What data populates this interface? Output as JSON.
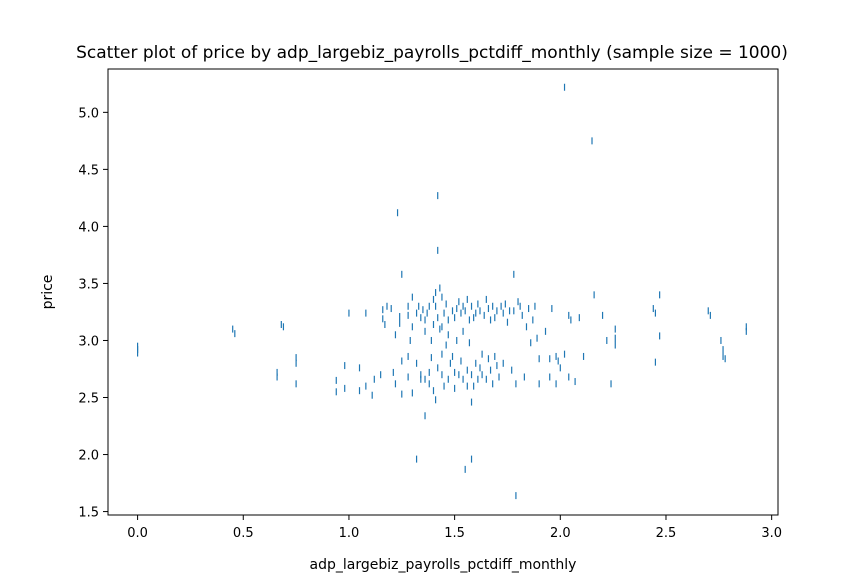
{
  "chart_data": {
    "type": "scatter",
    "title": "Scatter plot of price by adp_largebiz_payrolls_pctdiff_monthly (sample size = 1000)",
    "xlabel": "adp_largebiz_payrolls_pctdiff_monthly",
    "ylabel": "price",
    "xlim": [
      -0.14,
      3.03
    ],
    "ylim": [
      1.47,
      5.38
    ],
    "xticks": [
      0.0,
      0.5,
      1.0,
      1.5,
      2.0,
      2.5,
      3.0
    ],
    "xtick_labels": [
      "0.0",
      "0.5",
      "1.0",
      "1.5",
      "2.0",
      "2.5",
      "3.0"
    ],
    "yticks": [
      1.5,
      2.0,
      2.5,
      3.0,
      3.5,
      4.0,
      4.5,
      5.0
    ],
    "ytick_labels": [
      "1.5",
      "2.0",
      "2.5",
      "3.0",
      "3.5",
      "4.0",
      "4.5",
      "5.0"
    ],
    "grid": false,
    "marker": "|",
    "color": "#1f77b4",
    "points": [
      [
        0.0,
        2.95
      ],
      [
        0.0,
        2.92
      ],
      [
        0.0,
        2.89
      ],
      [
        0.45,
        3.1
      ],
      [
        0.46,
        3.06
      ],
      [
        0.68,
        3.14
      ],
      [
        0.69,
        3.12
      ],
      [
        0.66,
        2.72
      ],
      [
        0.66,
        2.68
      ],
      [
        0.75,
        2.85
      ],
      [
        0.75,
        2.8
      ],
      [
        0.75,
        2.62
      ],
      [
        0.94,
        2.65
      ],
      [
        0.94,
        2.55
      ],
      [
        0.98,
        2.78
      ],
      [
        0.98,
        2.58
      ],
      [
        1.0,
        3.24
      ],
      [
        1.05,
        2.76
      ],
      [
        1.05,
        2.56
      ],
      [
        1.08,
        2.6
      ],
      [
        1.08,
        3.24
      ],
      [
        1.11,
        2.52
      ],
      [
        1.12,
        2.66
      ],
      [
        1.15,
        2.7
      ],
      [
        1.16,
        3.27
      ],
      [
        1.16,
        3.19
      ],
      [
        1.17,
        3.14
      ],
      [
        1.18,
        3.3
      ],
      [
        1.2,
        3.28
      ],
      [
        1.21,
        2.72
      ],
      [
        1.22,
        3.05
      ],
      [
        1.22,
        2.62
      ],
      [
        1.23,
        4.12
      ],
      [
        1.24,
        3.15
      ],
      [
        1.24,
        3.21
      ],
      [
        1.25,
        3.58
      ],
      [
        1.25,
        2.53
      ],
      [
        1.25,
        2.82
      ],
      [
        1.28,
        3.3
      ],
      [
        1.28,
        3.22
      ],
      [
        1.28,
        2.86
      ],
      [
        1.28,
        2.68
      ],
      [
        1.29,
        3.0
      ],
      [
        1.3,
        3.38
      ],
      [
        1.3,
        3.12
      ],
      [
        1.3,
        2.54
      ],
      [
        1.32,
        3.24
      ],
      [
        1.32,
        2.8
      ],
      [
        1.32,
        1.96
      ],
      [
        1.33,
        3.3
      ],
      [
        1.34,
        3.2
      ],
      [
        1.34,
        2.7
      ],
      [
        1.34,
        2.66
      ],
      [
        1.35,
        3.27
      ],
      [
        1.36,
        3.18
      ],
      [
        1.36,
        3.08
      ],
      [
        1.36,
        2.66
      ],
      [
        1.36,
        2.34
      ],
      [
        1.37,
        3.24
      ],
      [
        1.38,
        3.3
      ],
      [
        1.38,
        2.72
      ],
      [
        1.38,
        2.62
      ],
      [
        1.39,
        3.0
      ],
      [
        1.39,
        2.85
      ],
      [
        1.4,
        3.36
      ],
      [
        1.4,
        3.14
      ],
      [
        1.4,
        2.56
      ],
      [
        1.41,
        3.42
      ],
      [
        1.41,
        3.3
      ],
      [
        1.41,
        2.48
      ],
      [
        1.42,
        4.27
      ],
      [
        1.42,
        3.79
      ],
      [
        1.42,
        3.2
      ],
      [
        1.42,
        2.76
      ],
      [
        1.43,
        3.46
      ],
      [
        1.43,
        3.1
      ],
      [
        1.44,
        3.38
      ],
      [
        1.44,
        3.12
      ],
      [
        1.44,
        2.88
      ],
      [
        1.44,
        2.7
      ],
      [
        1.45,
        3.24
      ],
      [
        1.45,
        2.6
      ],
      [
        1.46,
        3.32
      ],
      [
        1.46,
        2.96
      ],
      [
        1.47,
        3.18
      ],
      [
        1.47,
        3.05
      ],
      [
        1.47,
        2.66
      ],
      [
        1.48,
        2.8
      ],
      [
        1.49,
        3.26
      ],
      [
        1.49,
        2.86
      ],
      [
        1.5,
        3.2
      ],
      [
        1.5,
        2.72
      ],
      [
        1.5,
        2.58
      ],
      [
        1.51,
        3.28
      ],
      [
        1.51,
        3.0
      ],
      [
        1.52,
        3.34
      ],
      [
        1.52,
        2.7
      ],
      [
        1.53,
        3.24
      ],
      [
        1.53,
        2.82
      ],
      [
        1.54,
        3.3
      ],
      [
        1.54,
        3.08
      ],
      [
        1.54,
        2.66
      ],
      [
        1.55,
        3.26
      ],
      [
        1.55,
        1.87
      ],
      [
        1.56,
        3.36
      ],
      [
        1.56,
        2.74
      ],
      [
        1.56,
        2.6
      ],
      [
        1.57,
        3.18
      ],
      [
        1.57,
        2.98
      ],
      [
        1.58,
        3.3
      ],
      [
        1.58,
        2.7
      ],
      [
        1.58,
        2.46
      ],
      [
        1.58,
        1.96
      ],
      [
        1.59,
        3.2
      ],
      [
        1.59,
        2.6
      ],
      [
        1.6,
        3.24
      ],
      [
        1.6,
        2.8
      ],
      [
        1.61,
        3.32
      ],
      [
        1.61,
        2.66
      ],
      [
        1.62,
        3.26
      ],
      [
        1.62,
        2.76
      ],
      [
        1.63,
        2.88
      ],
      [
        1.63,
        2.7
      ],
      [
        1.64,
        3.22
      ],
      [
        1.65,
        3.36
      ],
      [
        1.65,
        2.66
      ],
      [
        1.66,
        3.28
      ],
      [
        1.66,
        2.84
      ],
      [
        1.67,
        3.18
      ],
      [
        1.67,
        2.74
      ],
      [
        1.68,
        3.3
      ],
      [
        1.68,
        2.62
      ],
      [
        1.69,
        3.2
      ],
      [
        1.69,
        2.86
      ],
      [
        1.7,
        3.26
      ],
      [
        1.7,
        2.78
      ],
      [
        1.71,
        2.68
      ],
      [
        1.72,
        3.3
      ],
      [
        1.73,
        3.24
      ],
      [
        1.73,
        2.8
      ],
      [
        1.74,
        3.32
      ],
      [
        1.75,
        3.16
      ],
      [
        1.76,
        3.26
      ],
      [
        1.77,
        2.74
      ],
      [
        1.78,
        3.58
      ],
      [
        1.78,
        3.26
      ],
      [
        1.79,
        2.62
      ],
      [
        1.79,
        1.64
      ],
      [
        1.8,
        3.34
      ],
      [
        1.81,
        3.3
      ],
      [
        1.82,
        3.22
      ],
      [
        1.83,
        2.68
      ],
      [
        1.84,
        3.12
      ],
      [
        1.85,
        3.28
      ],
      [
        1.86,
        2.98
      ],
      [
        1.87,
        3.18
      ],
      [
        1.88,
        3.3
      ],
      [
        1.89,
        3.02
      ],
      [
        1.9,
        2.84
      ],
      [
        1.9,
        2.62
      ],
      [
        1.93,
        3.08
      ],
      [
        1.95,
        2.84
      ],
      [
        1.95,
        2.68
      ],
      [
        1.96,
        3.28
      ],
      [
        1.98,
        2.86
      ],
      [
        1.98,
        2.62
      ],
      [
        1.99,
        2.82
      ],
      [
        2.0,
        2.76
      ],
      [
        2.02,
        5.22
      ],
      [
        2.02,
        2.88
      ],
      [
        2.04,
        3.22
      ],
      [
        2.04,
        2.68
      ],
      [
        2.05,
        3.18
      ],
      [
        2.07,
        2.64
      ],
      [
        2.09,
        3.2
      ],
      [
        2.11,
        2.86
      ],
      [
        2.15,
        4.75
      ],
      [
        2.16,
        3.4
      ],
      [
        2.2,
        3.22
      ],
      [
        2.22,
        3.0
      ],
      [
        2.24,
        2.62
      ],
      [
        2.26,
        3.1
      ],
      [
        2.26,
        3.02
      ],
      [
        2.26,
        2.96
      ],
      [
        2.44,
        3.28
      ],
      [
        2.45,
        3.24
      ],
      [
        2.45,
        2.81
      ],
      [
        2.47,
        3.4
      ],
      [
        2.47,
        3.04
      ],
      [
        2.7,
        3.26
      ],
      [
        2.71,
        3.22
      ],
      [
        2.76,
        3.0
      ],
      [
        2.77,
        2.92
      ],
      [
        2.77,
        2.86
      ],
      [
        2.78,
        2.84
      ],
      [
        2.88,
        3.12
      ],
      [
        2.88,
        3.08
      ]
    ]
  }
}
